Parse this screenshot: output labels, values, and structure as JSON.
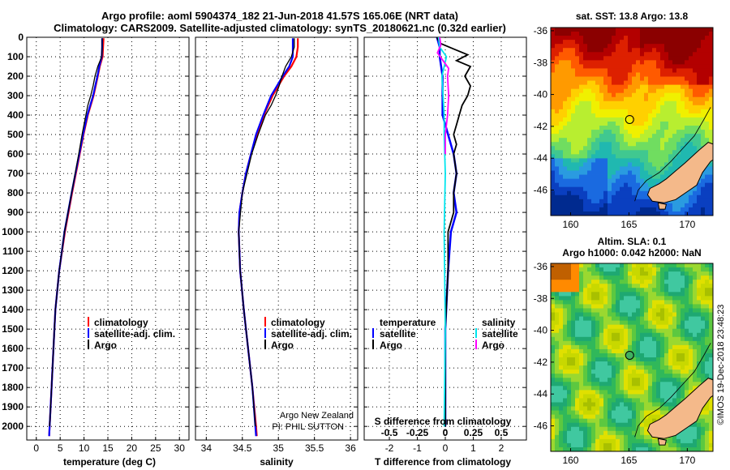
{
  "title_line1": "Argo profile: aoml 5904374_182 21-Jun-2018 41.57S 165.06E (NRT data)",
  "title_line2": "Climatology: CARS2009. Satellite-adjusted climatology: synTS_20180621.nc (0.32d earlier)",
  "colors": {
    "climatology": "#ff0000",
    "satellite": "#0000ff",
    "argo": "#000000",
    "sat_salinity": "#00e5ee",
    "argo_salinity": "#ff00ff",
    "land": "#f4b98a"
  },
  "chart_data": [
    {
      "type": "line",
      "name": "temperature",
      "xlabel": "temperature (deg C)",
      "ylabel": "",
      "xlim": [
        -2,
        32
      ],
      "ylim": [
        2070,
        0
      ],
      "xticks": [
        "0",
        "5",
        "10",
        "15",
        "20",
        "25",
        "30"
      ],
      "yticks": [
        "0",
        "100",
        "200",
        "300",
        "400",
        "500",
        "600",
        "700",
        "800",
        "900",
        "1000",
        "1100",
        "1200",
        "1300",
        "1400",
        "1500",
        "1600",
        "1700",
        "1800",
        "1900",
        "2000"
      ],
      "legend": [
        "climatology",
        "satellite-adj. clim.",
        "Argo"
      ],
      "series": [
        {
          "name": "climatology",
          "depth": [
            5,
            50,
            100,
            150,
            200,
            300,
            400,
            500,
            600,
            800,
            1000,
            1200,
            1400,
            1600,
            1800,
            2000,
            2050
          ],
          "values": [
            14.1,
            14.0,
            13.9,
            13.3,
            12.9,
            12.0,
            10.8,
            9.9,
            9.1,
            7.5,
            6.0,
            4.8,
            4.0,
            3.6,
            3.2,
            2.8,
            2.7
          ]
        },
        {
          "name": "satellite-adj. clim.",
          "depth": [
            5,
            50,
            100,
            150,
            200,
            300,
            400,
            500,
            600,
            800,
            1000,
            1200,
            1400,
            1600,
            1800,
            2000,
            2050
          ],
          "values": [
            13.8,
            13.8,
            13.7,
            13.2,
            12.8,
            11.9,
            10.7,
            9.8,
            9.0,
            7.4,
            5.9,
            4.8,
            4.0,
            3.6,
            3.2,
            2.8,
            2.7
          ]
        },
        {
          "name": "Argo",
          "depth": [
            5,
            50,
            100,
            150,
            200,
            250,
            300,
            350,
            400,
            500,
            600,
            800,
            1000,
            1200,
            1400,
            1600,
            1800,
            2000
          ],
          "values": [
            13.8,
            13.8,
            13.7,
            12.9,
            12.3,
            11.9,
            11.4,
            10.8,
            10.4,
            9.6,
            8.9,
            7.4,
            5.9,
            4.8,
            4.0,
            3.6,
            3.2,
            2.8
          ]
        }
      ]
    },
    {
      "type": "line",
      "name": "salinity",
      "xlabel": "salinity",
      "ylabel": "",
      "xlim": [
        33.85,
        36.1
      ],
      "ylim": [
        2070,
        0
      ],
      "xticks": [
        "34",
        "34.5",
        "35",
        "35.5",
        "36"
      ],
      "legend": [
        "climatology",
        "satellite-adj. clim.",
        "Argo"
      ],
      "annotation": [
        "Argo New Zealand",
        "PI: PHIL SUTTON"
      ],
      "series": [
        {
          "name": "climatology",
          "depth": [
            5,
            50,
            100,
            150,
            200,
            300,
            400,
            500,
            600,
            700,
            800,
            900,
            1000,
            1200,
            1400,
            1600,
            1800,
            2000,
            2050
          ],
          "values": [
            35.27,
            35.27,
            35.25,
            35.18,
            35.08,
            34.92,
            34.8,
            34.7,
            34.62,
            34.55,
            34.5,
            34.46,
            34.45,
            34.47,
            34.52,
            34.58,
            34.64,
            34.69,
            34.7
          ]
        },
        {
          "name": "satellite-adj. clim.",
          "depth": [
            5,
            50,
            100,
            150,
            200,
            300,
            400,
            500,
            600,
            700,
            800,
            900,
            1000,
            1200,
            1400,
            1600,
            1800,
            2000,
            2050
          ],
          "values": [
            35.2,
            35.2,
            35.2,
            35.15,
            35.06,
            34.9,
            34.79,
            34.69,
            34.62,
            34.55,
            34.5,
            34.46,
            34.45,
            34.47,
            34.52,
            34.58,
            34.64,
            34.68,
            34.69
          ]
        },
        {
          "name": "Argo",
          "depth": [
            5,
            50,
            100,
            150,
            200,
            250,
            300,
            350,
            400,
            500,
            600,
            800,
            1000,
            1200,
            1400,
            1600,
            1800,
            2000
          ],
          "values": [
            35.22,
            35.22,
            35.18,
            35.1,
            35.05,
            35.01,
            34.96,
            34.9,
            34.82,
            34.72,
            34.63,
            34.5,
            34.45,
            34.47,
            34.52,
            34.58,
            34.64,
            34.68
          ]
        }
      ]
    },
    {
      "type": "line",
      "name": "differences",
      "xlabel": "T difference from climatology",
      "xlabel_top": "S difference from climatology",
      "xlim": [
        -2.9,
        2.9
      ],
      "ylim": [
        2070,
        0
      ],
      "xticks": [
        "-2",
        "-1",
        "0",
        "1",
        "2"
      ],
      "xticks_top": [
        "-0.5",
        "-0.25",
        "0",
        "0.25",
        "0.5"
      ],
      "legend_left_title": "temperature",
      "legend_right_title": "salinity",
      "legend_left": [
        "satellite",
        "Argo"
      ],
      "legend_right": [
        "satellite",
        "Argo"
      ],
      "series": [
        {
          "name": "T satellite",
          "depth": [
            0,
            50,
            100,
            200,
            300,
            400,
            500,
            600,
            700,
            800,
            900,
            1000,
            1200,
            1500,
            2000
          ],
          "values": [
            -0.3,
            -0.2,
            -0.2,
            -0.1,
            -0.1,
            -0.1,
            0.1,
            0.3,
            0.4,
            0.3,
            0.4,
            0.2,
            0.1,
            0.0,
            0.0
          ]
        },
        {
          "name": "T Argo",
          "depth": [
            0,
            30,
            60,
            90,
            120,
            150,
            200,
            250,
            300,
            350,
            400,
            450,
            500,
            550,
            600,
            700,
            800,
            900,
            1000,
            1200,
            1500,
            2000
          ],
          "values": [
            -0.3,
            -0.2,
            0.3,
            0.8,
            0.4,
            0.9,
            0.7,
            0.9,
            0.8,
            0.6,
            0.5,
            0.4,
            0.3,
            0.4,
            0.3,
            0.4,
            0.3,
            0.3,
            0.1,
            0.1,
            0.0,
            0.0
          ]
        },
        {
          "name": "S satellite",
          "depth": [
            0,
            50,
            100,
            200,
            300,
            400,
            500,
            700,
            1000,
            1500,
            2000
          ],
          "values": [
            -0.06,
            -0.05,
            0.01,
            -0.03,
            -0.02,
            -0.01,
            -0.01,
            0.0,
            -0.01,
            0.0,
            -0.01
          ]
        },
        {
          "name": "S Argo",
          "depth": [
            0,
            40,
            80,
            120,
            160,
            200,
            300,
            400,
            500,
            600
          ],
          "values": [
            -0.05,
            -0.04,
            -0.07,
            -0.02,
            0.03,
            0.02,
            0.03,
            0.02,
            0.0,
            0.0
          ]
        }
      ]
    }
  ],
  "maps": [
    {
      "title": "sat. SST: 13.8 Argo: 13.8",
      "xticks": [
        "160",
        "165",
        "170"
      ],
      "yticks": [
        "-36",
        "-38",
        "-40",
        "-42",
        "-44",
        "-46"
      ]
    },
    {
      "title_line1": "Altim. SLA: 0.1",
      "title_line2": "Argo h1000: 0.042 h2000: NaN",
      "xticks": [
        "160",
        "165",
        "170"
      ],
      "yticks": [
        "-36",
        "-38",
        "-40",
        "-42",
        "-44",
        "-46"
      ]
    }
  ],
  "credit": "©IMOS 19-Dec-2018 23:48:23"
}
